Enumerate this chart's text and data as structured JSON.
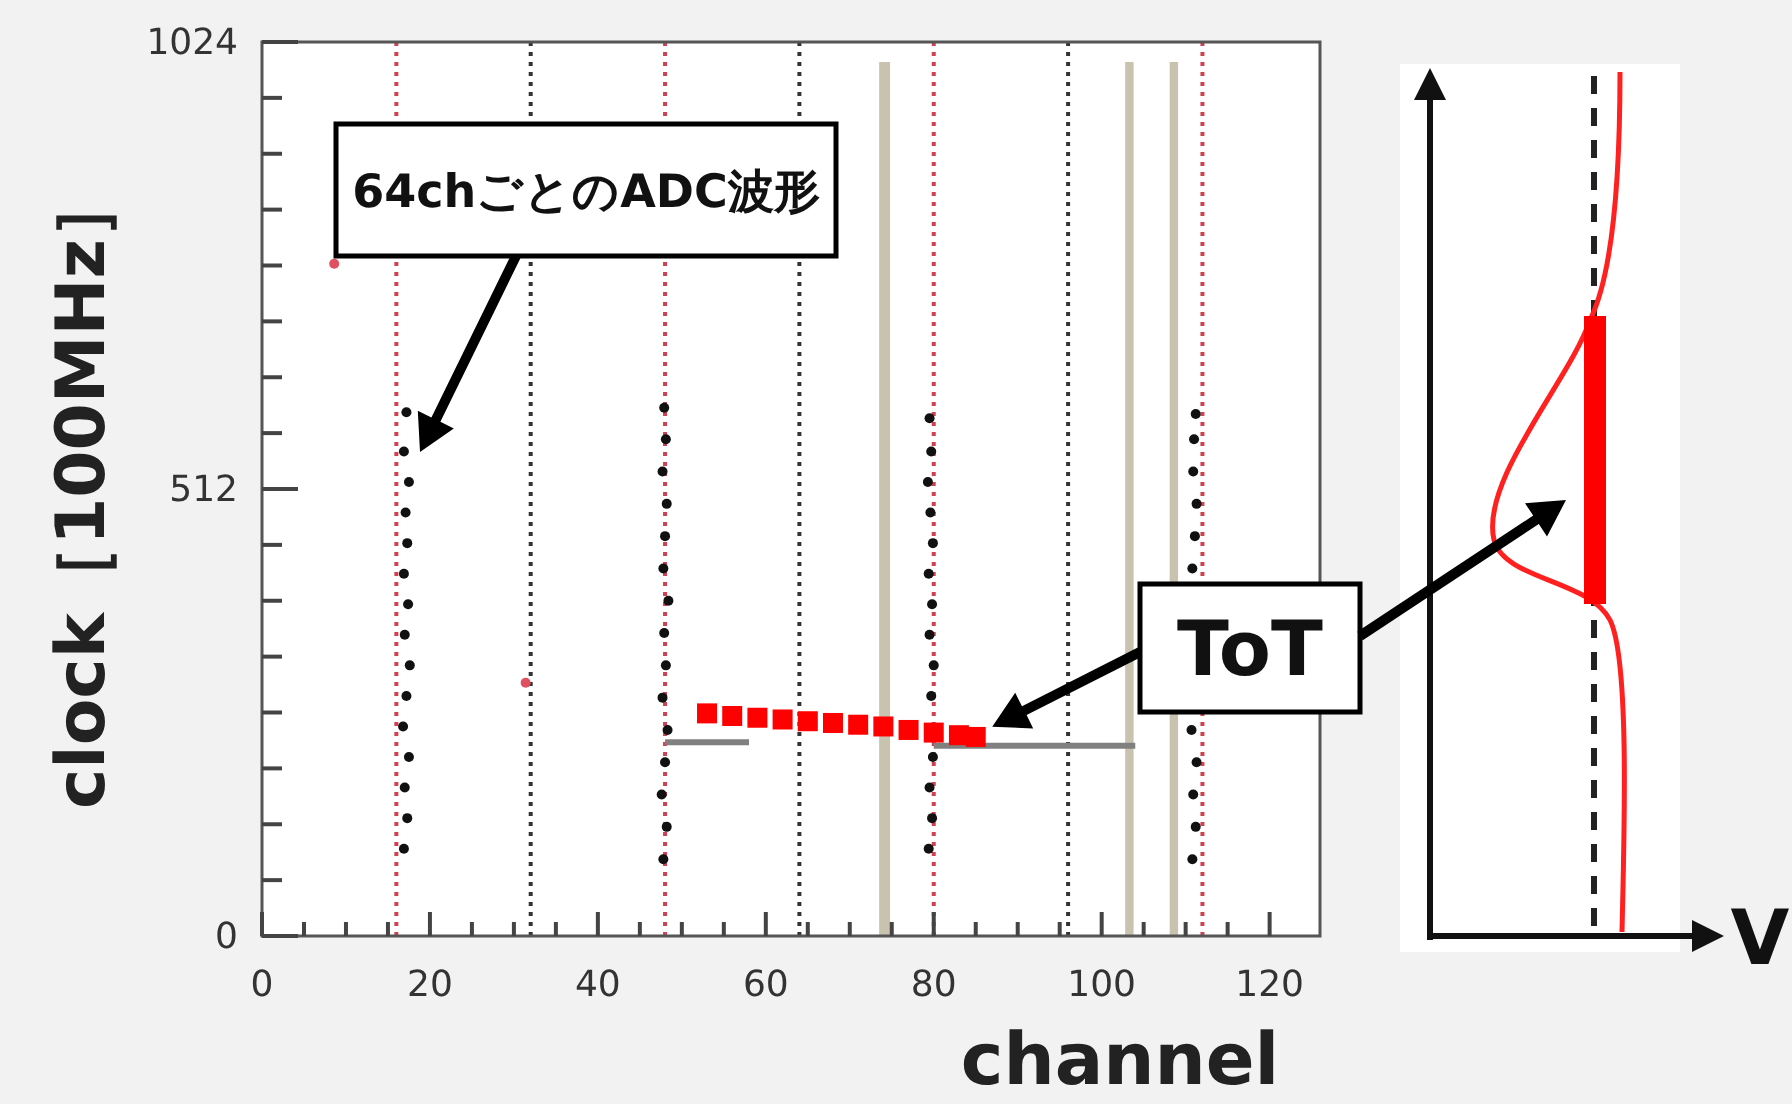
{
  "chart_data": {
    "type": "scatter",
    "xlabel": "channel",
    "ylabel": "clock［100MHz］",
    "xlim": [
      0,
      126
    ],
    "ylim": [
      0,
      1024
    ],
    "xticks": [
      0,
      {
        "value": 5,
        "label": null
      },
      {
        "value": 10,
        "label": null
      },
      {
        "value": 15,
        "label": null
      },
      20,
      {
        "value": 25,
        "label": null
      },
      {
        "value": 30,
        "label": null
      },
      {
        "value": 35,
        "label": null
      },
      40,
      {
        "value": 45,
        "label": null
      },
      {
        "value": 50,
        "label": null
      },
      {
        "value": 55,
        "label": null
      },
      60,
      {
        "value": 65,
        "label": null
      },
      {
        "value": 70,
        "label": null
      },
      {
        "value": 75,
        "label": null
      },
      80,
      {
        "value": 85,
        "label": null
      },
      {
        "value": 90,
        "label": null
      },
      {
        "value": 95,
        "label": null
      },
      100,
      {
        "value": 105,
        "label": null
      },
      {
        "value": 110,
        "label": null
      },
      {
        "value": 115,
        "label": null
      },
      120
    ],
    "yticks": [
      0,
      {
        "value": 64,
        "label": null
      },
      {
        "value": 128,
        "label": null
      },
      {
        "value": 192,
        "label": null
      },
      {
        "value": 256,
        "label": null
      },
      {
        "value": 320,
        "label": null
      },
      {
        "value": 384,
        "label": null
      },
      {
        "value": 448,
        "label": null
      },
      512,
      {
        "value": 576,
        "label": null
      },
      {
        "value": 640,
        "label": null
      },
      {
        "value": 704,
        "label": null
      },
      {
        "value": 768,
        "label": null
      },
      {
        "value": 832,
        "label": null
      },
      {
        "value": 896,
        "label": null
      },
      {
        "value": 960,
        "label": null
      },
      1024
    ],
    "series": [
      {
        "marker": "circle",
        "color": "#111111",
        "x": [
          16.9,
          17.3,
          17.0,
          17.5,
          16.8,
          17.2,
          17.6,
          17.0,
          17.4,
          16.9,
          17.3,
          17.1,
          17.5,
          16.9,
          17.2,
          47.8,
          48.2,
          47.6,
          48.0,
          48.3,
          47.7,
          48.1,
          47.9,
          48.4,
          47.8,
          48.0,
          48.2,
          47.7,
          48.1,
          47.9,
          79.4,
          79.8,
          79.5,
          79.9,
          79.7,
          80.0,
          79.5,
          79.8,
          79.4,
          79.9,
          79.6,
          79.3,
          79.7,
          79.5,
          110.8,
          111.2,
          110.9,
          111.3,
          110.7,
          110.8,
          111.1,
          111.3,
          110.9,
          111.0,
          111.2
        ],
        "values": [
          100,
          135,
          170,
          205,
          240,
          275,
          310,
          345,
          380,
          415,
          450,
          485,
          520,
          555,
          600,
          88,
          125,
          162,
          199,
          236,
          273,
          310,
          347,
          384,
          421,
          458,
          495,
          532,
          569,
          605,
          100,
          135,
          170,
          205,
          275,
          310,
          345,
          380,
          415,
          450,
          485,
          520,
          555,
          593,
          88,
          125,
          162,
          199,
          236,
          421,
          458,
          495,
          532,
          569,
          598
        ]
      },
      {
        "type": "line",
        "color": "#808080",
        "x": [
          48,
          58,
          59,
          80,
          104
        ],
        "values": [
          222,
          222,
          null,
          218,
          218
        ]
      },
      {
        "marker": "square",
        "color": "#ff0000",
        "x": [
          53,
          56,
          59,
          62,
          65,
          68,
          71,
          74,
          77,
          80,
          83,
          85
        ],
        "values": [
          255,
          252,
          250,
          248,
          246,
          244,
          242,
          240,
          236,
          233,
          230,
          228
        ]
      },
      {
        "marker": "circle",
        "color": "#e05060",
        "x": [
          8.6,
          31.4
        ],
        "values": [
          770,
          290
        ]
      }
    ],
    "ref_lines": [
      {
        "axis": "x",
        "value": 16,
        "color": "#d04050",
        "line_style": "dotted"
      },
      {
        "axis": "x",
        "value": 32,
        "color": "#333333",
        "line_style": "dotted"
      },
      {
        "axis": "x",
        "value": 48,
        "color": "#d04050",
        "line_style": "dotted"
      },
      {
        "axis": "x",
        "value": 64,
        "color": "#333333",
        "line_style": "dotted"
      },
      {
        "axis": "x",
        "value": 80,
        "color": "#d04050",
        "line_style": "dotted"
      },
      {
        "axis": "x",
        "value": 96,
        "color": "#333333",
        "line_style": "dotted"
      },
      {
        "axis": "x",
        "value": 112,
        "color": "#d04050",
        "line_style": "dotted"
      }
    ],
    "bands": [
      {
        "axis": "x",
        "from": 73.5,
        "to": 74.8,
        "color": "#c8c2ae"
      },
      {
        "axis": "x",
        "from": 102.8,
        "to": 103.8,
        "color": "#c8c2ae"
      },
      {
        "axis": "x",
        "from": 108.1,
        "to": 109.1,
        "color": "#c8c2ae"
      }
    ],
    "annotations": [
      "64chごとのADC波形",
      {
        "text": "ToT",
        "x": 86,
        "y": 235
      },
      "V"
    ]
  }
}
